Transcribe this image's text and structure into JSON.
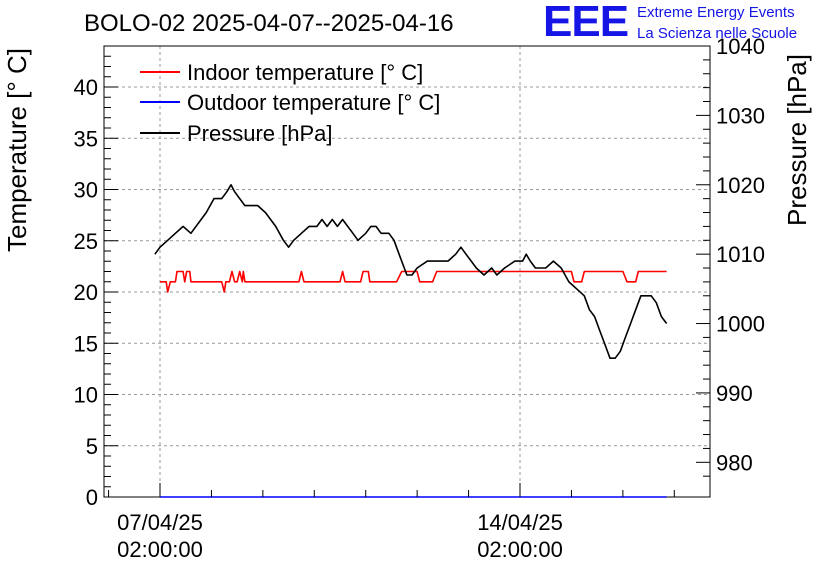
{
  "header": {
    "title": "BOLO-02 2025-04-07--2025-04-16",
    "logo_text": "EEE",
    "logo_line1": "Extreme Energy Events",
    "logo_line2": "La Scienza nelle Scuole"
  },
  "chart_data": {
    "type": "line",
    "title": "BOLO-02 2025-04-07--2025-04-16",
    "xlabel": "",
    "x_tick_labels": [
      [
        "07/04/25",
        "02:00:00"
      ],
      [
        "14/04/25",
        "02:00:00"
      ]
    ],
    "x_range_days": [
      -1.1,
      10.8
    ],
    "ylabel_left": "Temperature [° C]",
    "ylim_left": [
      0,
      44
    ],
    "yticks_left": [
      0,
      5,
      10,
      15,
      20,
      25,
      30,
      35,
      40
    ],
    "ylabel_right": "Pressure [hPa]",
    "ylim_right": [
      975,
      1040
    ],
    "yticks_right": [
      980,
      990,
      1000,
      1010,
      1020,
      1030,
      1040
    ],
    "grid": true,
    "legend_position": "top-left",
    "colors": {
      "indoor": "#ff0000",
      "outdoor": "#0000ff",
      "pressure": "#000000"
    },
    "series": [
      {
        "name": "Indoor temperature [° C]",
        "axis": "left",
        "color": "#ff0000",
        "points": [
          [
            0.0,
            21
          ],
          [
            0.12,
            21
          ],
          [
            0.15,
            20
          ],
          [
            0.2,
            21
          ],
          [
            0.3,
            21
          ],
          [
            0.33,
            22
          ],
          [
            0.45,
            22
          ],
          [
            0.48,
            21
          ],
          [
            0.52,
            22
          ],
          [
            0.58,
            22
          ],
          [
            0.6,
            21
          ],
          [
            1.2,
            21
          ],
          [
            1.25,
            20
          ],
          [
            1.28,
            21
          ],
          [
            1.35,
            21
          ],
          [
            1.4,
            22
          ],
          [
            1.45,
            21
          ],
          [
            1.5,
            21
          ],
          [
            1.55,
            22
          ],
          [
            1.6,
            21
          ],
          [
            1.62,
            22
          ],
          [
            1.65,
            21
          ],
          [
            2.7,
            21
          ],
          [
            2.75,
            22
          ],
          [
            2.8,
            21
          ],
          [
            3.5,
            21
          ],
          [
            3.55,
            22
          ],
          [
            3.6,
            21
          ],
          [
            3.9,
            21
          ],
          [
            3.95,
            22
          ],
          [
            4.05,
            22
          ],
          [
            4.08,
            21
          ],
          [
            4.6,
            21
          ],
          [
            4.7,
            22
          ],
          [
            5.0,
            22
          ],
          [
            5.05,
            21
          ],
          [
            5.3,
            21
          ],
          [
            5.38,
            22
          ],
          [
            8.0,
            22
          ],
          [
            8.05,
            21
          ],
          [
            8.2,
            21
          ],
          [
            8.25,
            22
          ],
          [
            9.0,
            22
          ],
          [
            9.08,
            21
          ],
          [
            9.25,
            21
          ],
          [
            9.3,
            22
          ],
          [
            9.85,
            22
          ]
        ]
      },
      {
        "name": "Outdoor temperature [° C]",
        "axis": "left",
        "color": "#0000ff",
        "points": [
          [
            0.0,
            0
          ],
          [
            9.85,
            0
          ]
        ]
      },
      {
        "name": "Pressure [hPa]",
        "axis": "right",
        "color": "#000000",
        "points": [
          [
            -0.1,
            1010
          ],
          [
            0.0,
            1011
          ],
          [
            0.15,
            1012
          ],
          [
            0.3,
            1013
          ],
          [
            0.45,
            1014
          ],
          [
            0.6,
            1013
          ],
          [
            0.8,
            1015
          ],
          [
            0.9,
            1016
          ],
          [
            1.05,
            1018
          ],
          [
            1.2,
            1018
          ],
          [
            1.3,
            1019
          ],
          [
            1.38,
            1020
          ],
          [
            1.45,
            1019
          ],
          [
            1.55,
            1018
          ],
          [
            1.65,
            1017
          ],
          [
            1.75,
            1017
          ],
          [
            1.9,
            1017
          ],
          [
            2.05,
            1016
          ],
          [
            2.15,
            1015
          ],
          [
            2.25,
            1014
          ],
          [
            2.4,
            1012
          ],
          [
            2.5,
            1011
          ],
          [
            2.6,
            1012
          ],
          [
            2.75,
            1013
          ],
          [
            2.9,
            1014
          ],
          [
            3.05,
            1014
          ],
          [
            3.15,
            1015
          ],
          [
            3.25,
            1014
          ],
          [
            3.35,
            1015
          ],
          [
            3.45,
            1014
          ],
          [
            3.55,
            1015
          ],
          [
            3.65,
            1014
          ],
          [
            3.75,
            1013
          ],
          [
            3.85,
            1012
          ],
          [
            4.0,
            1013
          ],
          [
            4.1,
            1014
          ],
          [
            4.2,
            1014
          ],
          [
            4.3,
            1013
          ],
          [
            4.45,
            1013
          ],
          [
            4.55,
            1012
          ],
          [
            4.65,
            1010
          ],
          [
            4.8,
            1007
          ],
          [
            4.9,
            1007
          ],
          [
            5.0,
            1008
          ],
          [
            5.2,
            1009
          ],
          [
            5.4,
            1009
          ],
          [
            5.6,
            1009
          ],
          [
            5.75,
            1010
          ],
          [
            5.85,
            1011
          ],
          [
            5.95,
            1010
          ],
          [
            6.05,
            1009
          ],
          [
            6.15,
            1008
          ],
          [
            6.3,
            1007
          ],
          [
            6.45,
            1008
          ],
          [
            6.55,
            1007
          ],
          [
            6.7,
            1008
          ],
          [
            6.9,
            1009
          ],
          [
            7.05,
            1009
          ],
          [
            7.12,
            1010
          ],
          [
            7.2,
            1009
          ],
          [
            7.3,
            1008
          ],
          [
            7.5,
            1008
          ],
          [
            7.65,
            1009
          ],
          [
            7.8,
            1008
          ],
          [
            7.95,
            1006
          ],
          [
            8.1,
            1005
          ],
          [
            8.25,
            1004
          ],
          [
            8.35,
            1002
          ],
          [
            8.45,
            1001
          ],
          [
            8.55,
            999
          ],
          [
            8.65,
            997
          ],
          [
            8.75,
            995
          ],
          [
            8.85,
            995
          ],
          [
            8.95,
            996
          ],
          [
            9.05,
            998
          ],
          [
            9.15,
            1000
          ],
          [
            9.25,
            1002
          ],
          [
            9.35,
            1004
          ],
          [
            9.45,
            1004
          ],
          [
            9.55,
            1004
          ],
          [
            9.65,
            1003
          ],
          [
            9.75,
            1001
          ],
          [
            9.85,
            1000
          ]
        ]
      }
    ]
  }
}
